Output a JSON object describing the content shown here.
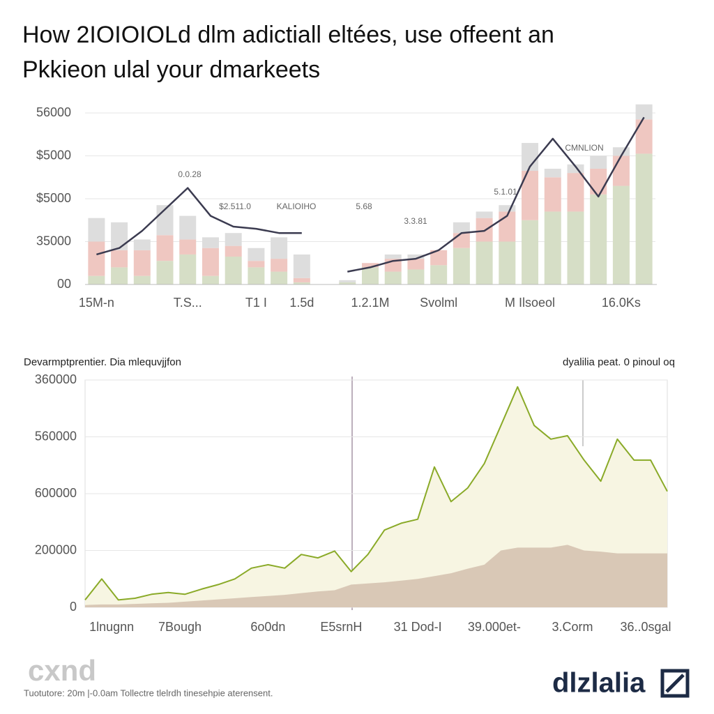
{
  "header": {
    "title_lines": [
      "How 2IOIOIOLd dlm adictiall eltées, use offeent an",
      "Pkkieon ulal your dmarkeets"
    ]
  },
  "chart_data": [
    {
      "type": "bar",
      "stacked": true,
      "grid": true,
      "categories": [
        "15M-n",
        null,
        null,
        null,
        "T.S...",
        null,
        null,
        "T1 I",
        null,
        "1.5d",
        null,
        null,
        "1.2.1M",
        null,
        null,
        "Svolml",
        null,
        null,
        null,
        "M Ilsoeol",
        null,
        null,
        null,
        "16.0Ks",
        null
      ],
      "ylim": [
        0,
        4.3
      ],
      "yticks": [
        {
          "value": 0,
          "label": "00"
        },
        {
          "value": 1,
          "label": "35000"
        },
        {
          "value": 2,
          "label": "$5000"
        },
        {
          "value": 3,
          "label": "$5000"
        },
        {
          "value": 4,
          "label": "56000"
        }
      ],
      "series": [
        {
          "color": "#d6dec6",
          "values": [
            0.2,
            0.4,
            0.2,
            0.55,
            0.7,
            0.2,
            0.65,
            0.4,
            0.3,
            0.05,
            null,
            0.05,
            0.4,
            0.3,
            0.35,
            0.45,
            0.85,
            1.0,
            1.0,
            1.5,
            1.7,
            1.7,
            2.1,
            2.3,
            3.05
          ]
        },
        {
          "color": "#efc7c1",
          "values": [
            0.8,
            0.4,
            0.6,
            0.6,
            0.35,
            0.65,
            0.25,
            0.15,
            0.3,
            0.1,
            null,
            0,
            0.1,
            0.3,
            0.25,
            0.35,
            0.35,
            0.55,
            0.7,
            1.15,
            0.8,
            0.9,
            0.6,
            0.7,
            0.8
          ]
        },
        {
          "color": "#dddddd",
          "values": [
            0.55,
            0.65,
            0.25,
            0.7,
            0.55,
            0.25,
            0.3,
            0.3,
            0.5,
            0.55,
            null,
            0.05,
            0,
            0.1,
            0.1,
            0,
            0.25,
            0.15,
            0.15,
            0.65,
            0.2,
            0.2,
            0.3,
            0.2,
            0.35
          ]
        },
        {
          "type": "line",
          "color": "#3b3b50",
          "values": [
            0.7,
            0.85,
            1.25,
            1.75,
            2.25,
            1.6,
            1.35,
            1.3,
            1.2,
            1.2,
            null,
            0.3,
            0.4,
            0.55,
            0.6,
            0.8,
            1.2,
            1.25,
            1.6,
            2.75,
            3.4,
            2.75,
            2.05,
            3.0,
            3.9
          ]
        }
      ],
      "annotations": [
        "0.0.28",
        "$2.511.0",
        "KALIOIHO",
        "5.68",
        "3.3.81",
        "5.1.01",
        "CMNLION"
      ]
    },
    {
      "type": "area",
      "grid": true,
      "title": "Devarmptprentier. Dia mlequvjjfon",
      "subtitle": "dyalilia peat. 0 pinoul oq",
      "x": [
        0,
        1,
        2,
        3,
        4,
        5,
        6,
        7,
        8,
        9,
        10,
        11,
        12,
        13,
        14,
        15,
        16,
        17,
        18,
        19,
        20,
        21,
        22,
        23,
        24,
        25,
        26,
        27,
        28,
        29,
        30,
        31,
        32,
        33,
        34,
        35
      ],
      "xlim": [
        0,
        35
      ],
      "xticks": [
        {
          "value": 1.6,
          "label": "1lnugnn"
        },
        {
          "value": 5.7,
          "label": "7Bough"
        },
        {
          "value": 11,
          "label": "6o0dn"
        },
        {
          "value": 15.4,
          "label": "E5srnH"
        },
        {
          "value": 20,
          "label": "31 Dod-I"
        },
        {
          "value": 24.6,
          "label": "39.000et-"
        },
        {
          "value": 29.3,
          "label": "3.Corm"
        },
        {
          "value": 33.7,
          "label": "36..0sgal"
        }
      ],
      "ylim": [
        0,
        4
      ],
      "yticks": [
        0,
        {
          "value": 1,
          "label": "200000"
        },
        {
          "value": 2,
          "label": "600000"
        },
        {
          "value": 3,
          "label": "560000"
        },
        {
          "value": 4,
          "label": "360000"
        }
      ],
      "series": [
        {
          "color": "#8aaa28",
          "fill": "#f7f5e2",
          "values": [
            0.13,
            0.5,
            0.13,
            0.16,
            0.23,
            0.26,
            0.23,
            0.32,
            0.4,
            0.5,
            0.69,
            0.75,
            0.69,
            0.93,
            0.87,
            0.99,
            0.63,
            0.93,
            1.36,
            1.48,
            1.55,
            2.47,
            1.86,
            2.1,
            2.53,
            3.2,
            3.88,
            3.2,
            2.96,
            3.02,
            2.59,
            2.22,
            2.96,
            2.59,
            2.59,
            2.04
          ]
        },
        {
          "color": "#d9c8b6",
          "fill": "#d9c8b6",
          "values": [
            0.04,
            0.05,
            0.05,
            0.06,
            0.07,
            0.08,
            0.1,
            0.12,
            0.14,
            0.16,
            0.18,
            0.2,
            0.22,
            0.25,
            0.28,
            0.3,
            0.4,
            0.42,
            0.44,
            0.47,
            0.5,
            0.55,
            0.6,
            0.68,
            0.75,
            1.0,
            1.05,
            1.05,
            1.05,
            1.1,
            1.0,
            0.98,
            0.95,
            0.95,
            0.95,
            0.95
          ]
        }
      ]
    }
  ],
  "footer": {
    "logo_left": "cxnd",
    "note": "Tuotutore: 20m |-0.0am   Tollectre tlelrdh tinesehpie aterensent.",
    "logo_right": "dlzlalia"
  }
}
